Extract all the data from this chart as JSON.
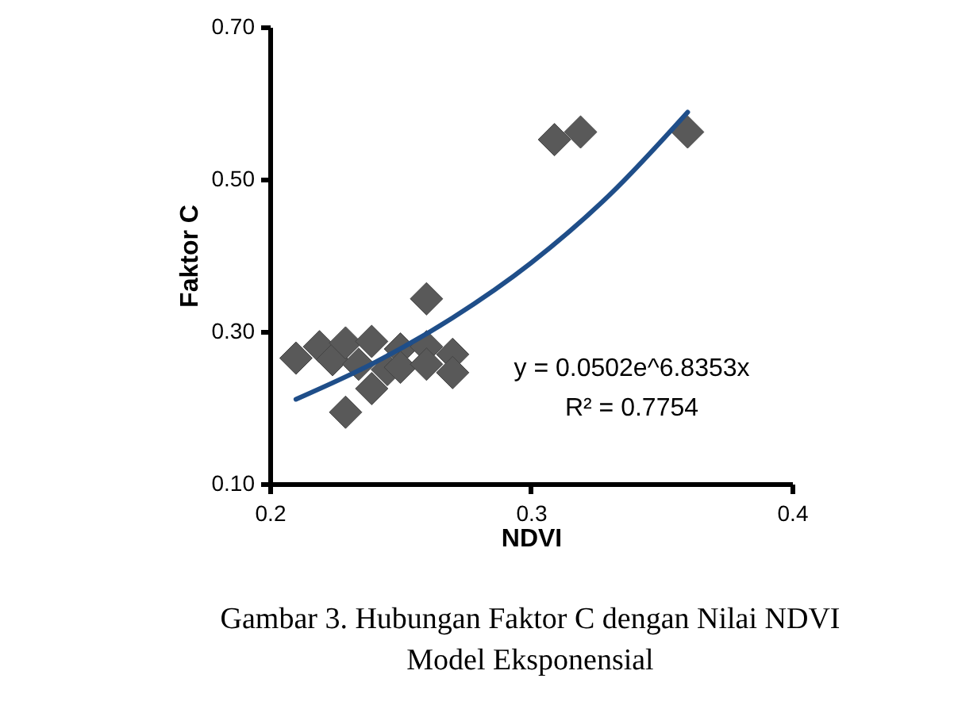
{
  "chart_data": {
    "type": "scatter",
    "xlabel": "NDVI",
    "ylabel": "Faktor C",
    "xlim": [
      0.2,
      0.4
    ],
    "xticks": [
      {
        "value": 0.2,
        "label": "0.2"
      },
      {
        "value": 0.3,
        "label": "0.3"
      },
      {
        "value": 0.4,
        "label": "0.4"
      }
    ],
    "ylim": [
      0.1,
      0.7
    ],
    "yticks": [
      {
        "value": 0.1,
        "label": "0.10"
      },
      {
        "value": 0.3,
        "label": "0.30"
      },
      {
        "value": 0.5,
        "label": "0.50"
      },
      {
        "value": 0.7,
        "label": "0.70"
      }
    ],
    "grid": false,
    "series": [
      {
        "marker": "diamond",
        "color": "#595959",
        "x": [
          0.21,
          0.219,
          0.224,
          0.229,
          0.229,
          0.234,
          0.239,
          0.239,
          0.245,
          0.25,
          0.25,
          0.26,
          0.26,
          0.26,
          0.27,
          0.27,
          0.309,
          0.319,
          0.36
        ],
        "values": [
          0.265,
          0.28,
          0.263,
          0.285,
          0.194,
          0.257,
          0.287,
          0.225,
          0.25,
          0.277,
          0.253,
          0.343,
          0.28,
          0.257,
          0.27,
          0.246,
          0.552,
          0.562,
          0.562
        ]
      },
      {
        "type": "line",
        "marker": "none",
        "color": "#1f4e89",
        "x": [
          0.21,
          0.24,
          0.27,
          0.3,
          0.33,
          0.36
        ],
        "values": [
          0.211,
          0.259,
          0.318,
          0.39,
          0.479,
          0.588
        ]
      }
    ],
    "annotations": [
      "y = 0.0502e^6.8353x",
      "R² = 0.7754",
      "Gambar 3. Hubungan Faktor C dengan Nilai NDVI",
      "Model Eksponensial"
    ]
  }
}
